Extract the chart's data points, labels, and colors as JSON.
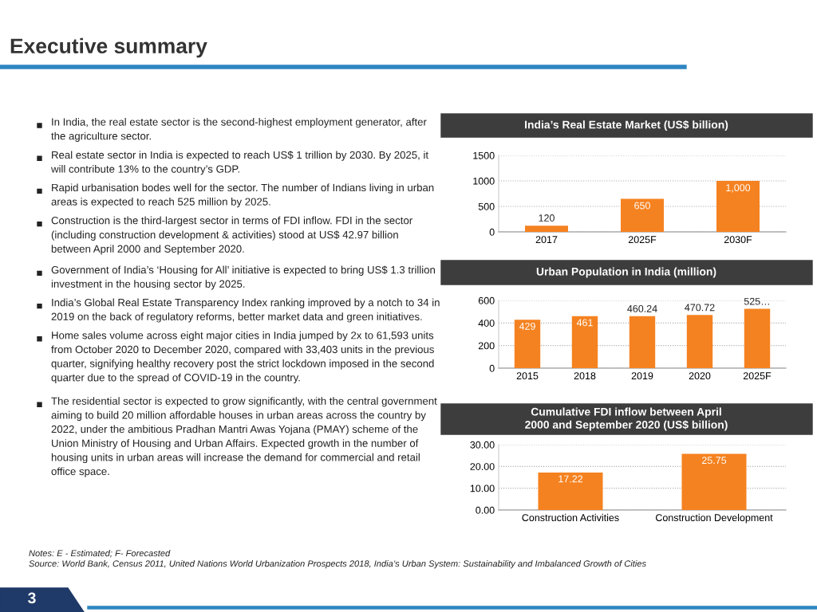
{
  "chart_data": [
    {
      "type": "other",
      "title": "Executive summary",
      "annotations": [
        "In India, the real estate sector is the second-highest employment generator, after the agriculture sector.",
        "Real estate sector in India is expected to reach US$ 1 trillion by 2030. By 2025, it will contribute 13% to the country’s GDP.",
        "Rapid urbanisation bodes well for the sector. The number of Indians living in urban areas is expected to reach 525 million by 2025.",
        "Construction is the third-largest sector in terms of FDI inflow. FDI in the sector (including construction development & activities) stood at US$ 42.97 billion between April 2000 and September 2020.",
        "Government of India’s ‘Housing for All’ initiative is expected to bring US$ 1.3 trillion investment in the housing sector by 2025.",
        "India’s Global Real Estate Transparency Index ranking improved by a notch to 34 in 2019 on the back of regulatory reforms, better market data and green initiatives.",
        "Home sales volume across eight major cities in India jumped by 2x to 61,593 units from October 2020 to December 2020, compared with 33,403 units in the previous quarter, signifying healthy recovery post the strict lockdown imposed in the second quarter due to the spread of COVID-19 in the country.",
        "The residential sector is expected to grow significantly, with the central government aiming to build 20 million affordable houses in urban areas across the country by 2022, under the ambitious Pradhan Mantri Awas Yojana (PMAY) scheme of the Union Ministry of Housing and Urban Affairs. Expected growth in the number of housing units in urban areas will increase the demand for commercial and retail office space."
      ]
    },
    {
      "type": "bar",
      "title": "India’s Real Estate Market (US$ billion)",
      "categories": [
        "2017",
        "2025F",
        "2030F"
      ],
      "values": [
        120,
        650,
        1000
      ],
      "value_labels": [
        "120",
        "650",
        "1,000"
      ],
      "color": "#f58220",
      "ylim": [
        0,
        1500
      ],
      "yticks": [
        0,
        500,
        1000,
        1500
      ],
      "grid": "y"
    },
    {
      "type": "bar",
      "title": "Urban Population in India (million)",
      "categories": [
        "2015",
        "2018",
        "2019",
        "2020",
        "2025F"
      ],
      "values": [
        429,
        461,
        460.24,
        470.72,
        525
      ],
      "value_labels": [
        "429",
        "461",
        "460.24",
        "470.72",
        "525…"
      ],
      "color": "#f58220",
      "ylim": [
        0,
        600
      ],
      "yticks": [
        0,
        200,
        400,
        600
      ],
      "grid": "y"
    },
    {
      "type": "bar",
      "title": "Cumulative FDI inflow between April 2000 and September 2020 (US$ billion)",
      "categories": [
        "Construction Activities",
        "Construction Development"
      ],
      "values": [
        17.22,
        25.75
      ],
      "value_labels": [
        "17.22",
        "25.75"
      ],
      "color": "#f58220",
      "ylim": [
        0,
        30
      ],
      "yticks": [
        {
          "value": 0,
          "label": "0.00"
        },
        {
          "value": 10,
          "label": "10.00"
        },
        {
          "value": 20,
          "label": "20.00"
        },
        {
          "value": 30,
          "label": "30.00"
        }
      ],
      "grid": "y"
    },
    {
      "type": "other",
      "annotations": [
        "Notes: E - Estimated; F- Forecasted",
        "Source: World Bank, Census 2011, United Nations World Urbanization Prospects 2018, India’s Urban System: Sustainability and Imbalanced Growth of Cities",
        "3"
      ]
    }
  ]
}
